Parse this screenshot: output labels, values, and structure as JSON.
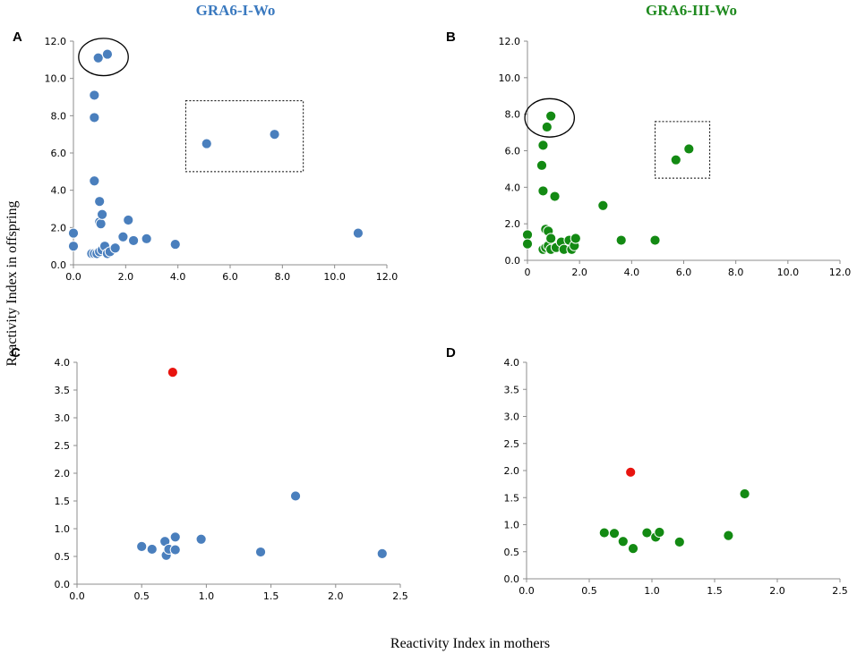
{
  "figure": {
    "xlabel": "Reactivity Index in mothers",
    "ylabel": "Reactivity Index in offspring"
  },
  "colors": {
    "blue": "#4a7fbd",
    "green": "#138a13",
    "red": "#e8140f",
    "blueTitle": "#3a79bf",
    "greenTitle": "#1f8a1f"
  },
  "chart_data": [
    {
      "panel": "A",
      "type": "scatter",
      "title": "GRA6-I-Wo",
      "color": "#4a7fbd",
      "xlim": [
        0,
        12
      ],
      "ylim": [
        0,
        12
      ],
      "xticks": [
        "0.0",
        "2.0",
        "4.0",
        "6.0",
        "8.0",
        "10.0",
        "12.0"
      ],
      "yticks": [
        "0.0",
        "2.0",
        "4.0",
        "6.0",
        "8.0",
        "10.0",
        "12.0"
      ],
      "points": [
        [
          0.0,
          1.7
        ],
        [
          0.0,
          1.0
        ],
        [
          0.7,
          0.6
        ],
        [
          0.8,
          0.6
        ],
        [
          0.9,
          0.6
        ],
        [
          1.0,
          0.7
        ],
        [
          1.1,
          0.8
        ],
        [
          1.2,
          1.0
        ],
        [
          1.3,
          0.6
        ],
        [
          1.4,
          0.7
        ],
        [
          1.6,
          0.9
        ],
        [
          1.0,
          2.3
        ],
        [
          1.05,
          2.2
        ],
        [
          1.1,
          2.7
        ],
        [
          1.0,
          3.4
        ],
        [
          0.8,
          4.5
        ],
        [
          0.8,
          7.9
        ],
        [
          0.8,
          9.1
        ],
        [
          0.95,
          11.1
        ],
        [
          1.3,
          11.3
        ],
        [
          1.9,
          1.5
        ],
        [
          2.1,
          2.4
        ],
        [
          2.3,
          1.3
        ],
        [
          2.8,
          1.4
        ],
        [
          3.9,
          1.1
        ],
        [
          5.1,
          6.5
        ],
        [
          7.7,
          7.0
        ],
        [
          10.9,
          1.7
        ]
      ],
      "highlights": [
        {
          "shape": "ellipse",
          "x": 1.15,
          "y": 11.15,
          "rx": 0.95,
          "ry": 1.0
        },
        {
          "shape": "rect",
          "x0": 4.3,
          "x1": 8.8,
          "y0": 5.0,
          "y1": 8.8
        }
      ]
    },
    {
      "panel": "B",
      "type": "scatter",
      "title": "GRA6-III-Wo",
      "color": "#138a13",
      "xlim": [
        0,
        12
      ],
      "ylim": [
        0,
        12
      ],
      "xticks": [
        "0",
        "2.0",
        "4.0",
        "6.0",
        "8.0",
        "10.0",
        "12.0"
      ],
      "yticks": [
        "0.0",
        "2.0",
        "4.0",
        "6.0",
        "8.0",
        "10.0",
        "12.0"
      ],
      "points": [
        [
          0.0,
          1.4
        ],
        [
          0.0,
          0.9
        ],
        [
          0.6,
          0.6
        ],
        [
          0.7,
          0.7
        ],
        [
          0.8,
          0.8
        ],
        [
          0.9,
          0.6
        ],
        [
          0.7,
          1.7
        ],
        [
          0.8,
          1.6
        ],
        [
          0.9,
          1.2
        ],
        [
          1.1,
          0.7
        ],
        [
          1.3,
          1.0
        ],
        [
          1.4,
          0.6
        ],
        [
          1.6,
          1.1
        ],
        [
          1.7,
          0.6
        ],
        [
          1.8,
          0.8
        ],
        [
          1.85,
          1.2
        ],
        [
          0.6,
          3.8
        ],
        [
          1.05,
          3.5
        ],
        [
          0.55,
          5.2
        ],
        [
          0.6,
          6.3
        ],
        [
          0.75,
          7.3
        ],
        [
          0.9,
          7.9
        ],
        [
          2.9,
          3.0
        ],
        [
          3.6,
          1.1
        ],
        [
          4.9,
          1.1
        ],
        [
          5.7,
          5.5
        ],
        [
          6.2,
          6.1
        ]
      ],
      "highlights": [
        {
          "shape": "ellipse",
          "x": 0.85,
          "y": 7.8,
          "rx": 0.95,
          "ry": 1.05
        },
        {
          "shape": "rect",
          "x0": 4.9,
          "x1": 7.0,
          "y0": 4.5,
          "y1": 7.6
        }
      ]
    },
    {
      "panel": "C",
      "type": "scatter",
      "title": "",
      "color": "#4a7fbd",
      "xlim": [
        0,
        2.5
      ],
      "ylim": [
        0,
        4.0
      ],
      "xticks": [
        "0.0",
        "0.5",
        "1.0",
        "1.5",
        "2.0",
        "2.5"
      ],
      "yticks": [
        "0.0",
        "0.5",
        "1.0",
        "1.5",
        "2.0",
        "2.5",
        "3.0",
        "3.5",
        "4.0"
      ],
      "points": [
        [
          0.5,
          0.68
        ],
        [
          0.58,
          0.63
        ],
        [
          0.68,
          0.77
        ],
        [
          0.69,
          0.52
        ],
        [
          0.71,
          0.63
        ],
        [
          0.76,
          0.85
        ],
        [
          0.76,
          0.62
        ],
        [
          0.96,
          0.81
        ],
        [
          1.42,
          0.58
        ],
        [
          1.69,
          1.59
        ],
        [
          2.36,
          0.55
        ]
      ],
      "red_point": [
        0.74,
        3.82
      ]
    },
    {
      "panel": "D",
      "type": "scatter",
      "title": "",
      "color": "#138a13",
      "xlim": [
        0,
        2.5
      ],
      "ylim": [
        0,
        4.0
      ],
      "xticks": [
        "0.0",
        "0.5",
        "1.0",
        "1.5",
        "2.0",
        "2.5"
      ],
      "yticks": [
        "0.0",
        "0.5",
        "1.0",
        "1.5",
        "2.0",
        "2.5",
        "3.0",
        "3.5",
        "4.0"
      ],
      "points": [
        [
          0.62,
          0.85
        ],
        [
          0.7,
          0.84
        ],
        [
          0.77,
          0.69
        ],
        [
          0.85,
          0.56
        ],
        [
          0.96,
          0.85
        ],
        [
          1.03,
          0.77
        ],
        [
          1.06,
          0.86
        ],
        [
          1.22,
          0.68
        ],
        [
          1.61,
          0.8
        ],
        [
          1.74,
          1.57
        ]
      ],
      "red_point": [
        0.83,
        1.97
      ]
    }
  ]
}
